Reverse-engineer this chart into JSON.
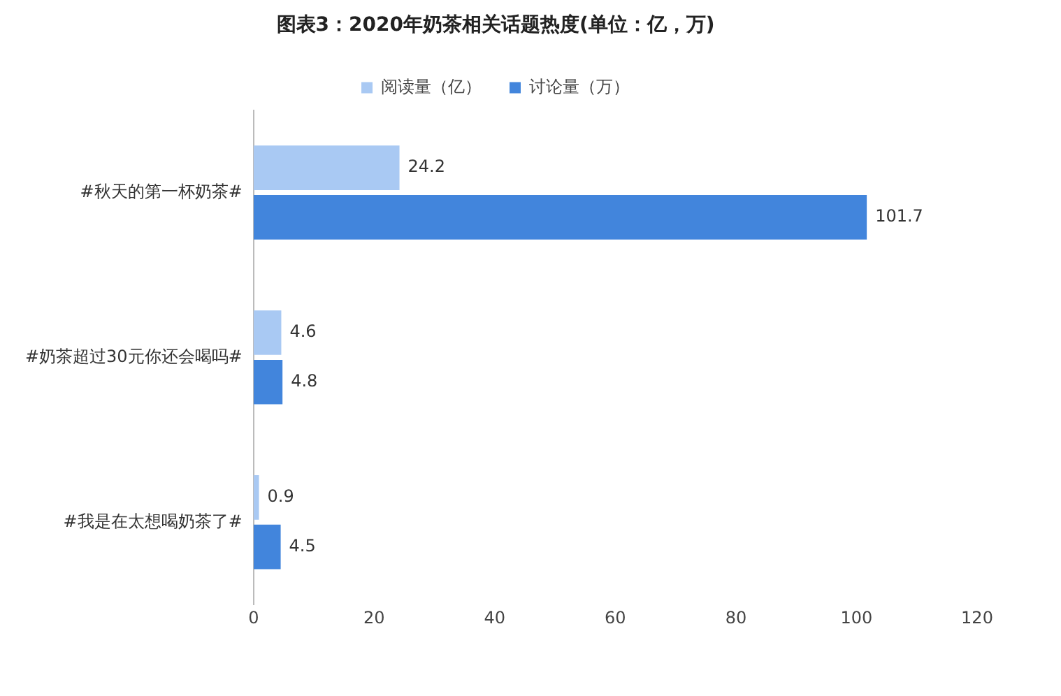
{
  "chart_data": {
    "type": "bar",
    "orientation": "horizontal",
    "title": "图表3：2020年奶茶相关话题热度(单位：亿，万)",
    "categories": [
      "#秋天的第一杯奶茶#",
      "#奶茶超过30元你还会喝吗#",
      "#我是在太想喝奶茶了#"
    ],
    "series": [
      {
        "name": "阅读量（亿）",
        "color": "#a9c9f3",
        "values": [
          24.2,
          4.6,
          0.9
        ]
      },
      {
        "name": "讨论量（万）",
        "color": "#4285dc",
        "values": [
          101.7,
          4.8,
          4.5
        ]
      }
    ],
    "xlim": [
      0,
      120
    ],
    "xticks": [
      0,
      20,
      40,
      60,
      80,
      100,
      120
    ],
    "grid": false,
    "legend": "top",
    "data_labels": true
  }
}
